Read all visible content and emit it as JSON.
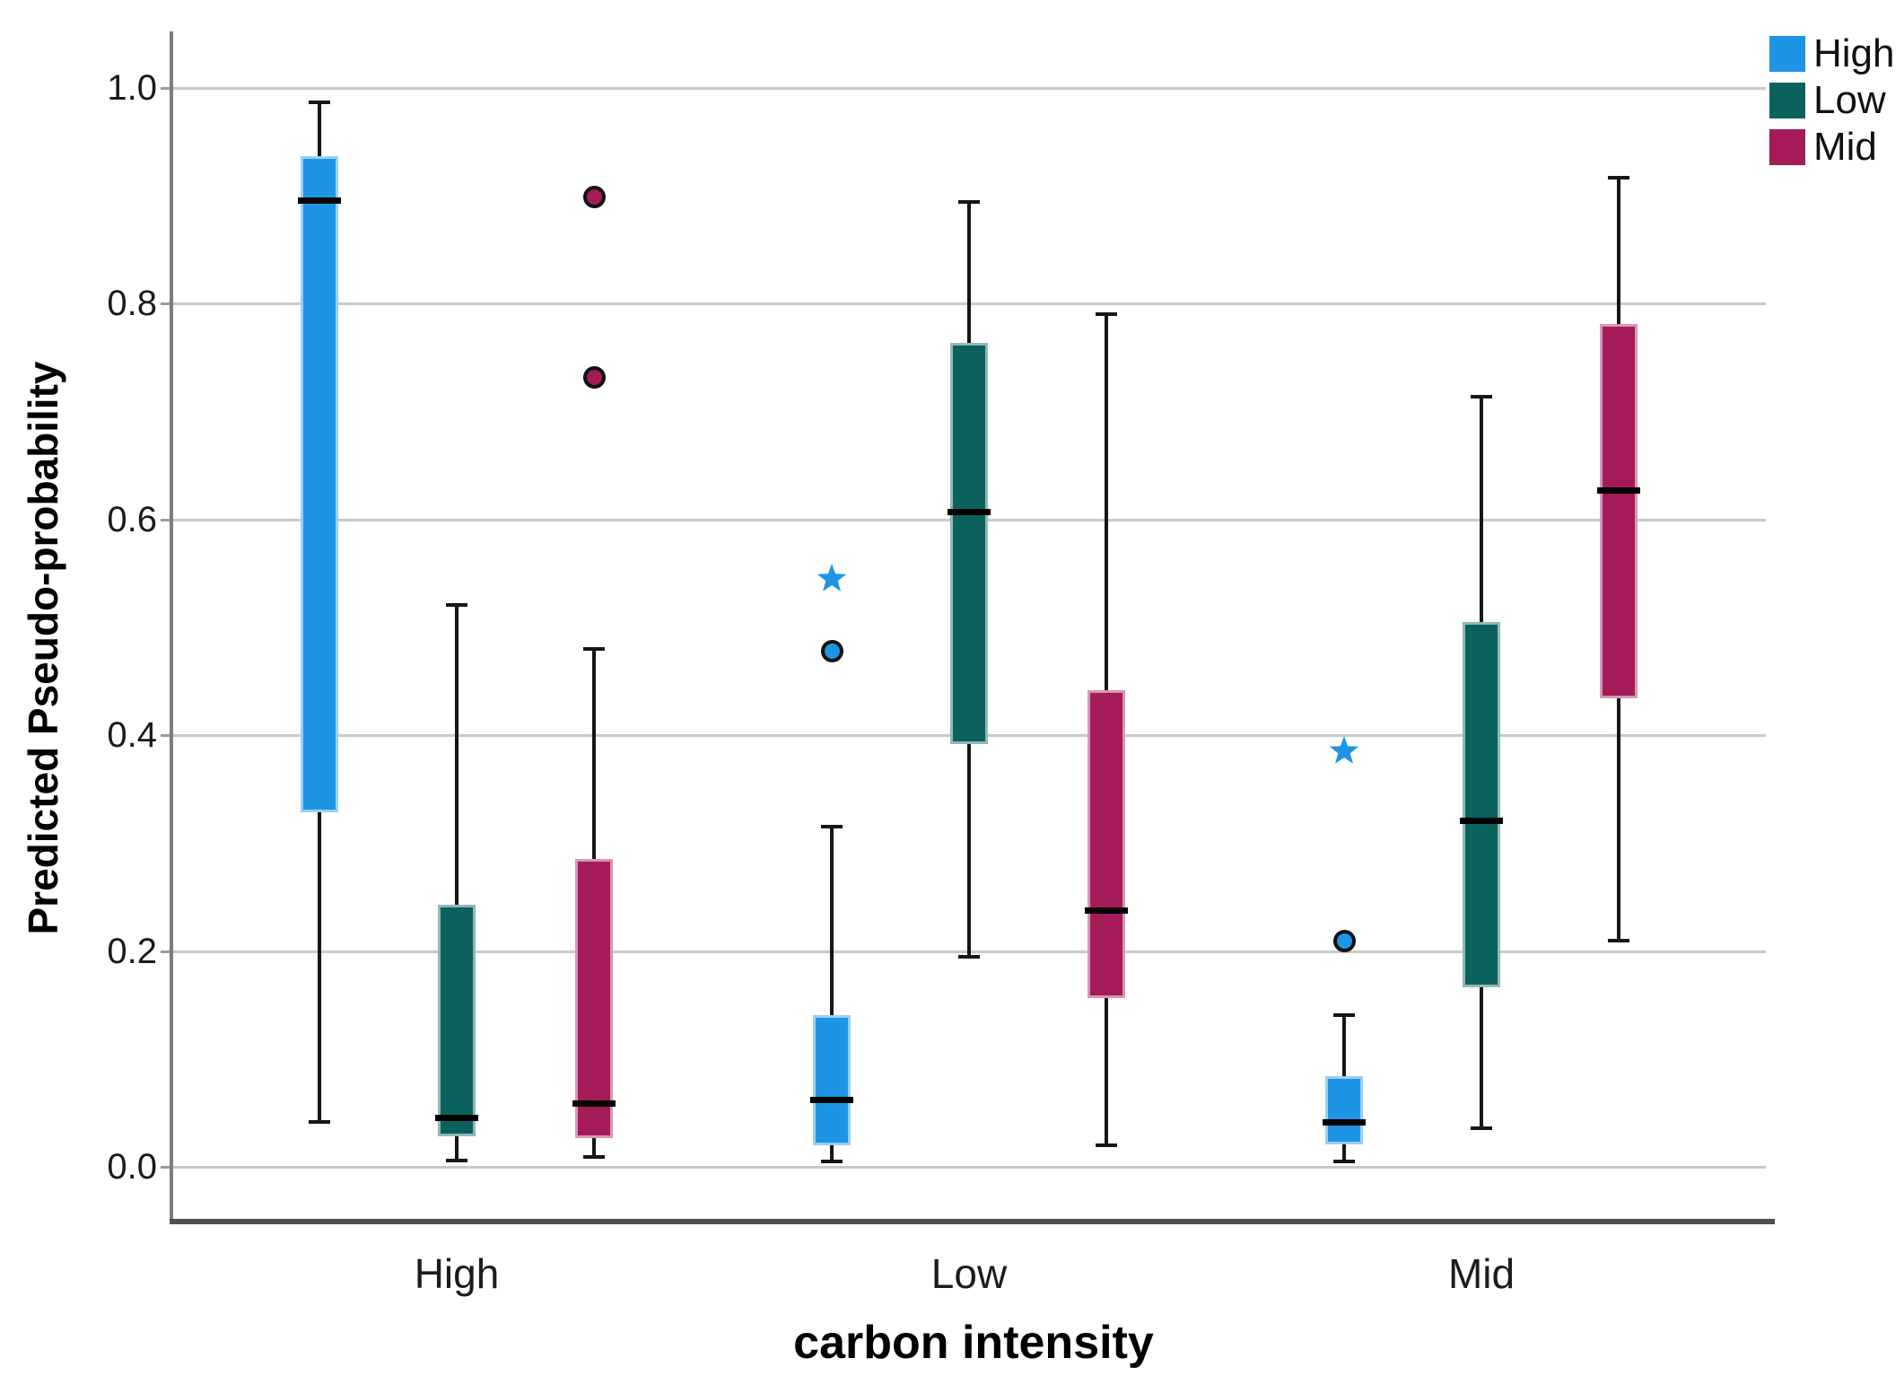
{
  "chart_data": {
    "type": "boxplot",
    "title": "",
    "xlabel": "carbon intensity",
    "ylabel": "Predicted Pseudo-probability",
    "categories": [
      "High",
      "Low",
      "Mid"
    ],
    "y_ticks": [
      {
        "value": 0.0,
        "label": "0.0"
      },
      {
        "value": 0.2,
        "label": "0.2"
      },
      {
        "value": 0.4,
        "label": "0.4"
      },
      {
        "value": 0.6,
        "label": "0.6"
      },
      {
        "value": 0.8,
        "label": "0.8"
      },
      {
        "value": 1.0,
        "label": "1.0"
      }
    ],
    "ylim": [
      -0.05,
      1.05
    ],
    "grid": true,
    "legend": {
      "position": "top-right",
      "entries": [
        {
          "label": "High",
          "color": "#1e95e4"
        },
        {
          "label": "Low",
          "color": "#0b625d"
        },
        {
          "label": "Mid",
          "color": "#a41b58"
        }
      ]
    },
    "series": [
      {
        "name": "High",
        "color": "#1e95e4",
        "boxes": [
          {
            "category": "High",
            "whisker_low": 0.042,
            "q1": 0.329,
            "median": 0.896,
            "q3": 0.937,
            "whisker_high": 0.987,
            "outliers": [],
            "extremes": []
          },
          {
            "category": "Low",
            "whisker_low": 0.005,
            "q1": 0.02,
            "median": 0.062,
            "q3": 0.141,
            "whisker_high": 0.315,
            "outliers": [
              0.478
            ],
            "extremes": [
              0.545
            ]
          },
          {
            "category": "Mid",
            "whisker_low": 0.005,
            "q1": 0.021,
            "median": 0.042,
            "q3": 0.084,
            "whisker_high": 0.141,
            "outliers": [
              0.21
            ],
            "extremes": [
              0.385
            ]
          }
        ]
      },
      {
        "name": "Low",
        "color": "#0b625d",
        "boxes": [
          {
            "category": "High",
            "whisker_low": 0.006,
            "q1": 0.028,
            "median": 0.046,
            "q3": 0.243,
            "whisker_high": 0.521,
            "outliers": [],
            "extremes": []
          },
          {
            "category": "Low",
            "whisker_low": 0.195,
            "q1": 0.392,
            "median": 0.607,
            "q3": 0.764,
            "whisker_high": 0.894,
            "outliers": [],
            "extremes": []
          },
          {
            "category": "Mid",
            "whisker_low": 0.036,
            "q1": 0.166,
            "median": 0.321,
            "q3": 0.505,
            "whisker_high": 0.714,
            "outliers": [],
            "extremes": []
          }
        ]
      },
      {
        "name": "Mid",
        "color": "#a41b58",
        "boxes": [
          {
            "category": "High",
            "whisker_low": 0.009,
            "q1": 0.027,
            "median": 0.059,
            "q3": 0.285,
            "whisker_high": 0.48,
            "outliers": [
              0.732,
              0.899
            ],
            "extremes": []
          },
          {
            "category": "Low",
            "whisker_low": 0.02,
            "q1": 0.156,
            "median": 0.238,
            "q3": 0.442,
            "whisker_high": 0.79,
            "outliers": [],
            "extremes": []
          },
          {
            "category": "Mid",
            "whisker_low": 0.21,
            "q1": 0.434,
            "median": 0.627,
            "q3": 0.781,
            "whisker_high": 0.917,
            "outliers": [],
            "extremes": []
          }
        ]
      }
    ],
    "style": {
      "background": "#ffffff",
      "grid_color": "#c9c9c9",
      "y_axis_color": "#7d7d7d",
      "x_axis_color": "#4e4e4e",
      "text_color": "#1a1a1a",
      "median_color": "#000000",
      "whisker_color": "#161616",
      "outlier_ring_color": "#111111"
    }
  }
}
